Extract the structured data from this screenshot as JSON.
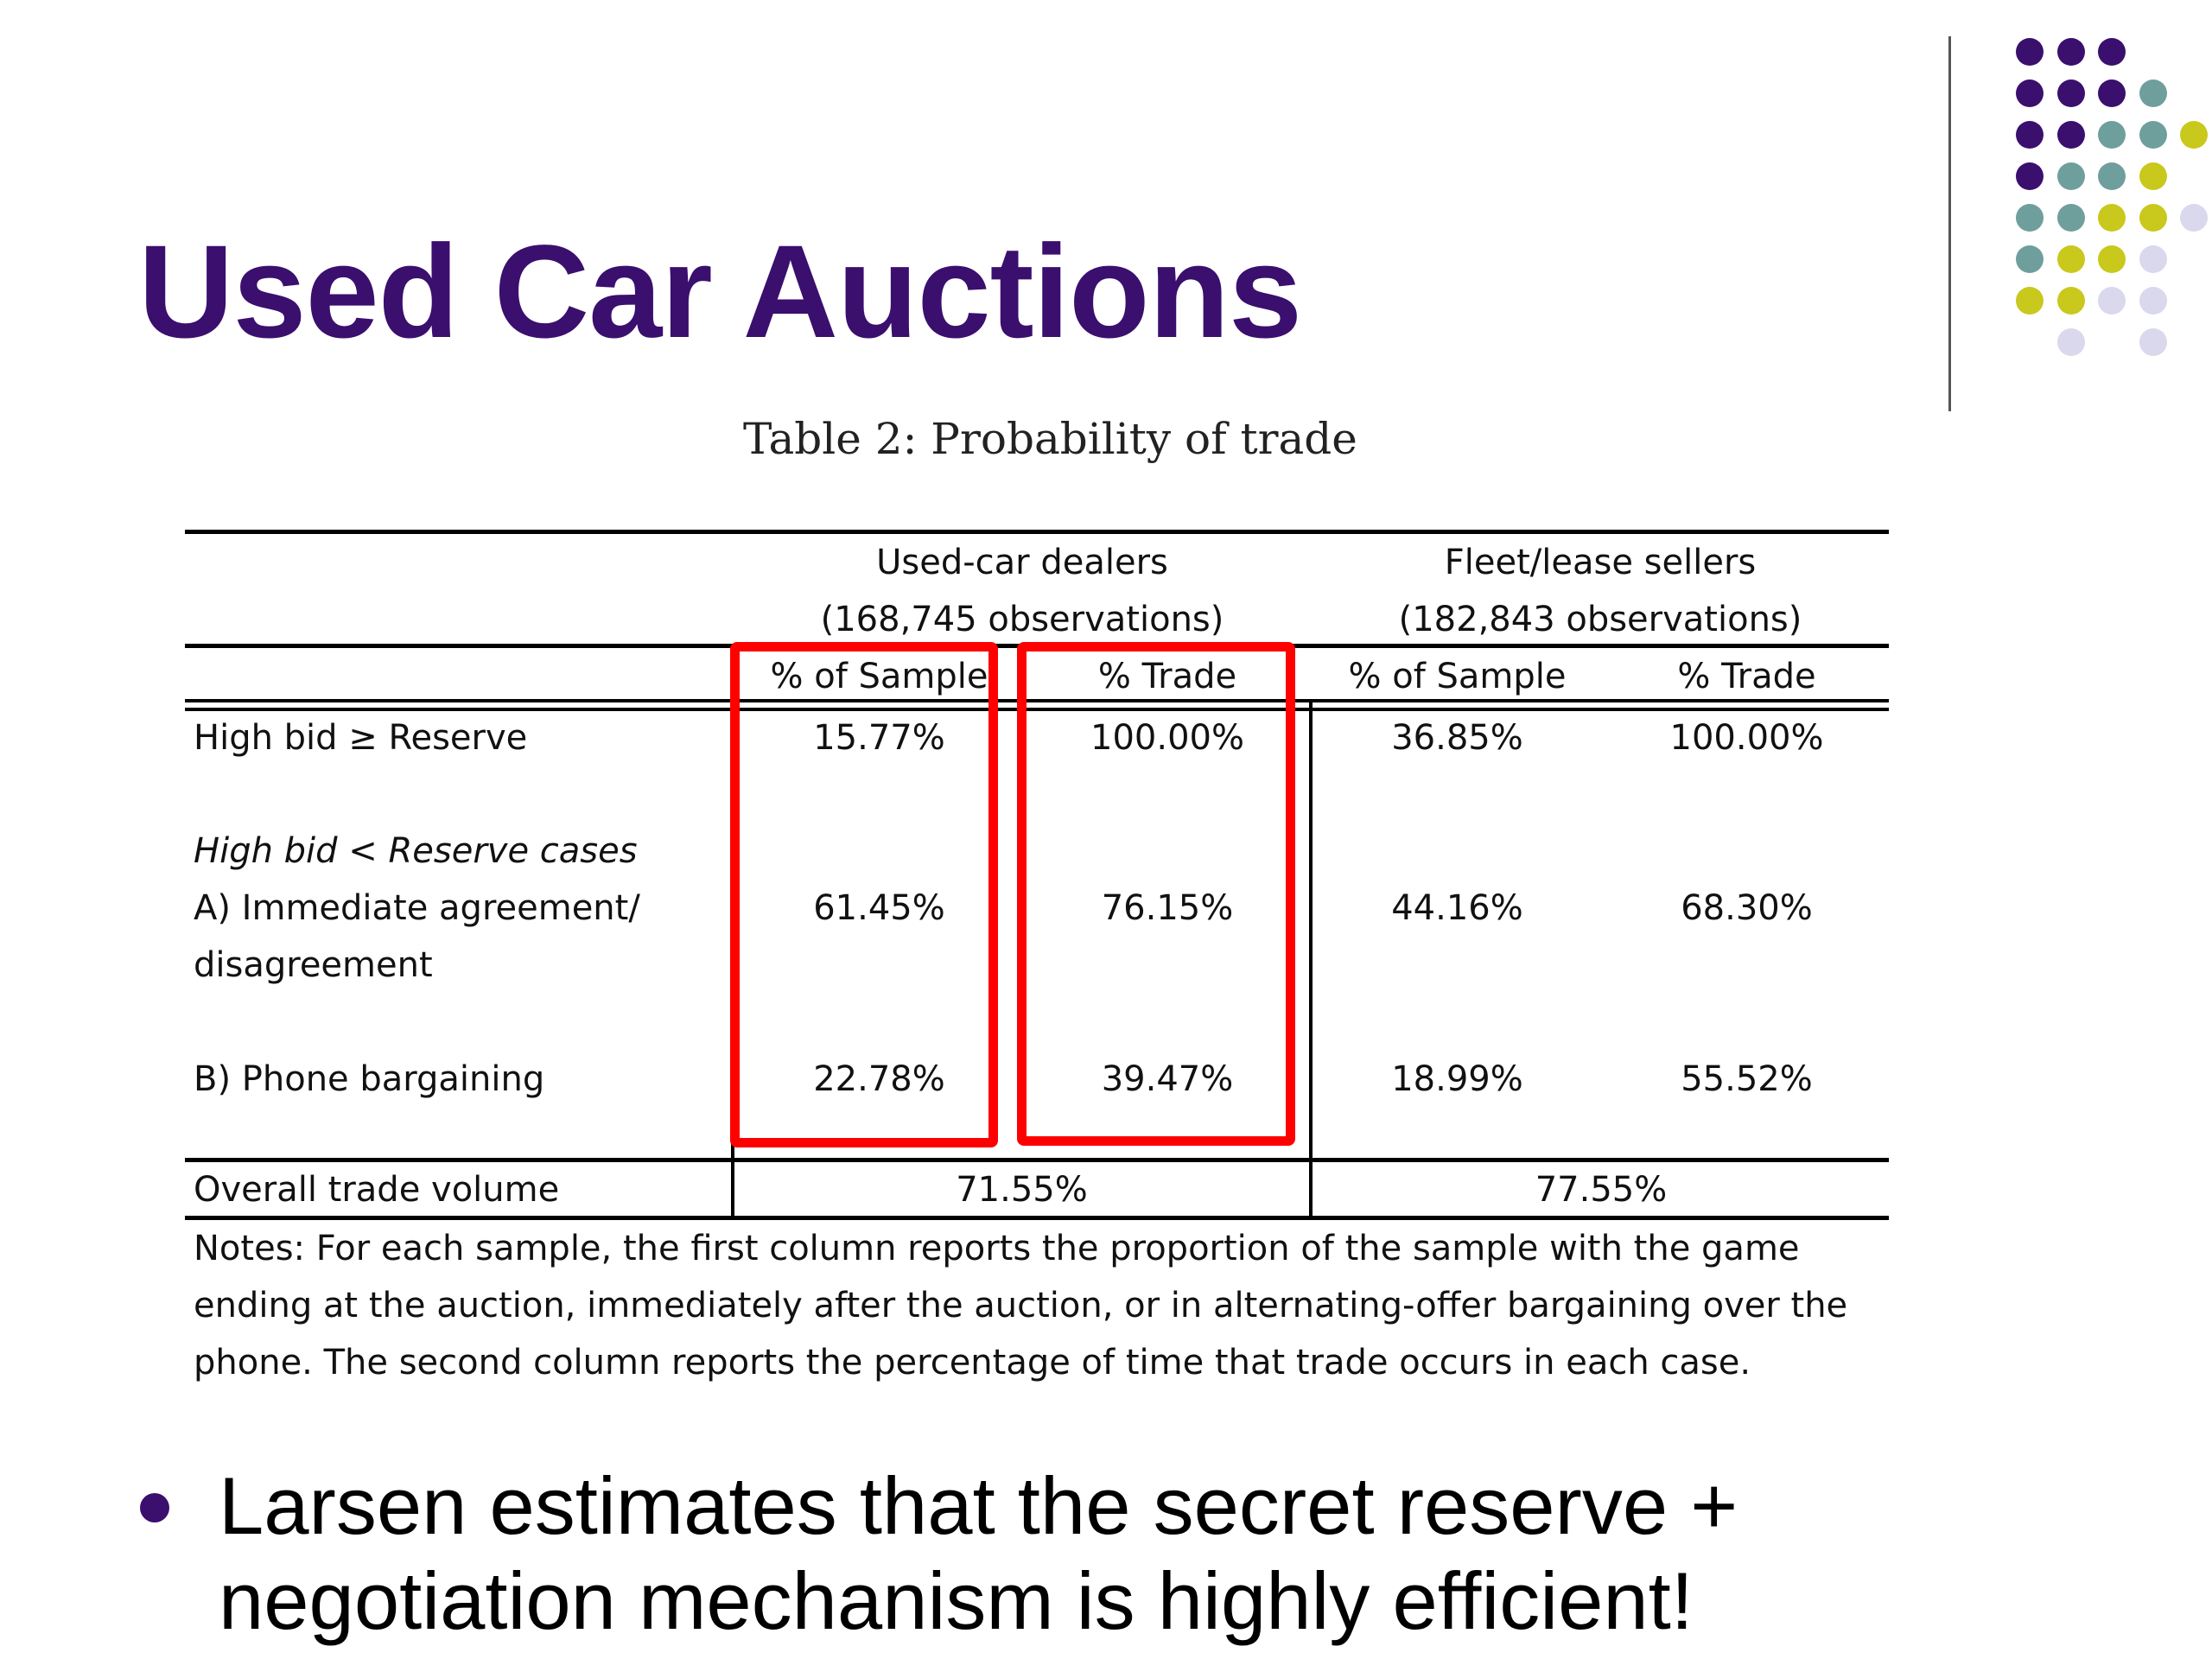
{
  "slide": {
    "title": "Used Car Auctions",
    "bullet": "Larsen estimates that the secret reserve + negotiation mechanism is highly efficient!"
  },
  "decoration": {
    "colors": {
      "purple": "#3a0f6e",
      "teal": "#6f9f9c",
      "olive": "#c9c81c",
      "lavender": "#d9d8ec"
    },
    "dot_grid": [
      [
        "purple",
        "purple",
        "purple",
        null,
        null
      ],
      [
        "purple",
        "purple",
        "purple",
        "teal",
        null
      ],
      [
        "purple",
        "purple",
        "teal",
        "teal",
        "olive"
      ],
      [
        "purple",
        "teal",
        "teal",
        "olive",
        null
      ],
      [
        "teal",
        "teal",
        "olive",
        "olive",
        "lavender"
      ],
      [
        "teal",
        "olive",
        "olive",
        "lavender",
        null
      ],
      [
        "olive",
        "olive",
        "lavender",
        "lavender",
        null
      ],
      [
        null,
        "lavender",
        null,
        "lavender",
        null
      ]
    ],
    "highlight_color": "#ff0000"
  },
  "table": {
    "caption": "Table 2: Probability of trade",
    "groups": [
      {
        "label": "Used-car dealers",
        "obs": "(168,745 observations)"
      },
      {
        "label": "Fleet/lease sellers",
        "obs": "(182,843 observations)"
      }
    ],
    "subheaders": [
      "% of Sample",
      "% Trade",
      "% of Sample",
      "% Trade"
    ],
    "row_high": {
      "label": "High bid ≥ Reserve",
      "values": [
        "15.77%",
        "100.00%",
        "36.85%",
        "100.00%"
      ]
    },
    "section_label": "High bid < Reserve cases",
    "row_a": {
      "label1": "A) Immediate agreement/",
      "label2": "disagreement",
      "values": [
        "61.45%",
        "76.15%",
        "44.16%",
        "68.30%"
      ]
    },
    "row_b": {
      "label": "B) Phone bargaining",
      "values": [
        "22.78%",
        "39.47%",
        "18.99%",
        "55.52%"
      ]
    },
    "overall": {
      "label": "Overall trade volume",
      "values": [
        "71.55%",
        "77.55%"
      ]
    },
    "notes": "Notes: For each sample, the first column reports the proportion of the sample with the game ending at the auction, immediately after the auction, or in alternating-offer bargaining over the phone. The second column reports the percentage of time that trade occurs in each case."
  }
}
